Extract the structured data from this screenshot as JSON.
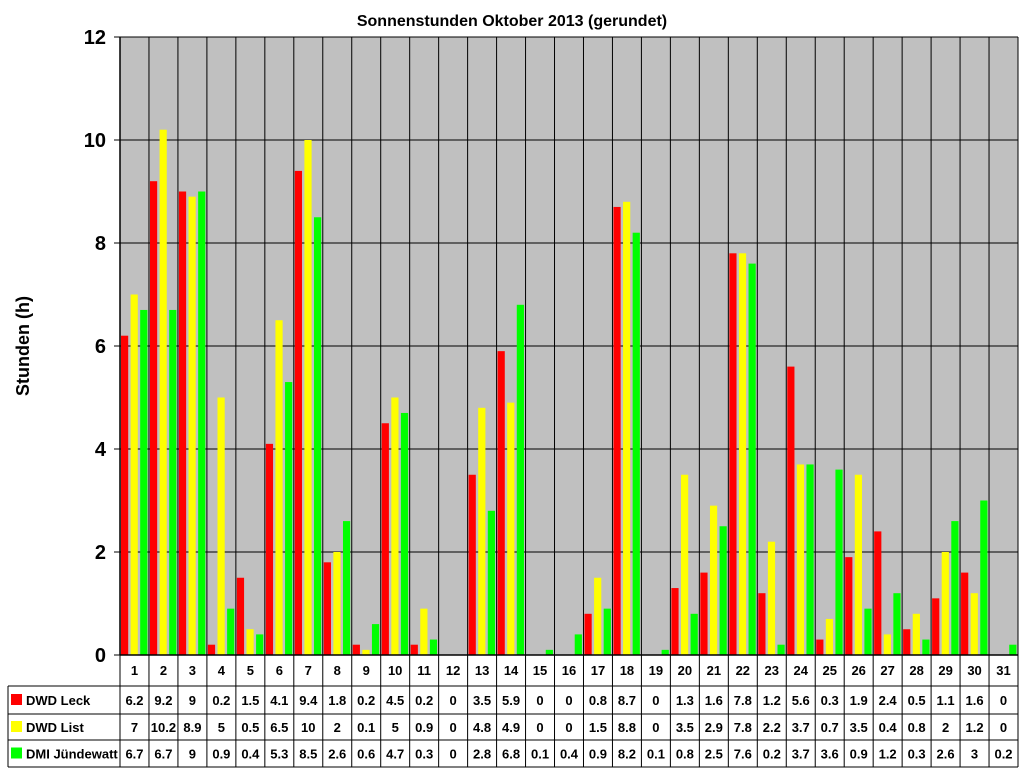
{
  "chart_data": {
    "type": "bar",
    "title": "Sonnenstunden Oktober 2013 (gerundet)",
    "xlabel": "",
    "ylabel": "Stunden (h)",
    "ylim": [
      0,
      12
    ],
    "yticks": [
      0,
      2,
      4,
      6,
      8,
      10,
      12
    ],
    "grid": true,
    "plot_background": "#C0C0C0",
    "legend_placement": "data-table-left",
    "categories": [
      "1",
      "2",
      "3",
      "4",
      "5",
      "6",
      "7",
      "8",
      "9",
      "10",
      "11",
      "12",
      "13",
      "14",
      "15",
      "16",
      "17",
      "18",
      "19",
      "20",
      "21",
      "22",
      "23",
      "24",
      "25",
      "26",
      "27",
      "28",
      "29",
      "30",
      "31"
    ],
    "series": [
      {
        "name": "DWD Leck",
        "color": "#FF0000",
        "values": [
          6.2,
          9.2,
          9,
          0.2,
          1.5,
          4.1,
          9.4,
          1.8,
          0.2,
          4.5,
          0.2,
          0,
          3.5,
          5.9,
          0,
          0,
          0.8,
          8.7,
          0,
          1.3,
          1.6,
          7.8,
          1.2,
          5.6,
          0.3,
          1.9,
          2.4,
          0.5,
          1.1,
          1.6,
          0
        ]
      },
      {
        "name": "DWD List",
        "color": "#FFFF00",
        "values": [
          7,
          10.2,
          8.9,
          5,
          0.5,
          6.5,
          10,
          2,
          0.1,
          5,
          0.9,
          0,
          4.8,
          4.9,
          0,
          0,
          1.5,
          8.8,
          0,
          3.5,
          2.9,
          7.8,
          2.2,
          3.7,
          0.7,
          3.5,
          0.4,
          0.8,
          2,
          1.2,
          0
        ]
      },
      {
        "name": "DMI Jündewatt",
        "color": "#00FF00",
        "values": [
          6.7,
          6.7,
          9,
          0.9,
          0.4,
          5.3,
          8.5,
          2.6,
          0.6,
          4.7,
          0.3,
          0,
          2.8,
          6.8,
          0.1,
          0.4,
          0.9,
          8.2,
          0.1,
          0.8,
          2.5,
          7.6,
          0.2,
          3.7,
          3.6,
          0.9,
          1.2,
          0.3,
          2.6,
          3,
          0.2
        ]
      }
    ]
  }
}
